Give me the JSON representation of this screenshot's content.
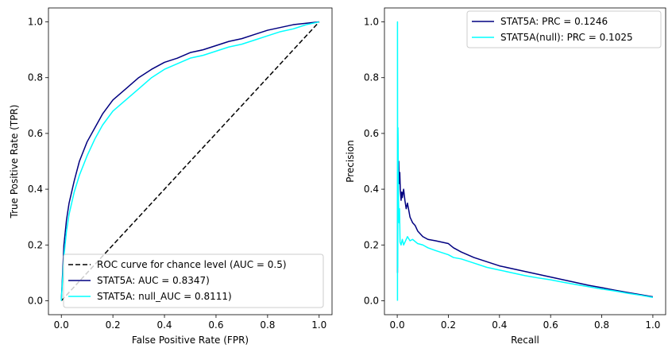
{
  "chart_data": [
    {
      "type": "line",
      "xlabel": "False Positive Rate (FPR)",
      "ylabel": "True Positive Rate (TPR)",
      "xlim": [
        -0.05,
        1.05
      ],
      "ylim": [
        -0.05,
        1.05
      ],
      "xticks": [
        0.0,
        0.2,
        0.4,
        0.6,
        0.8,
        1.0
      ],
      "yticks": [
        0.0,
        0.2,
        0.4,
        0.6,
        0.8,
        1.0
      ],
      "tick_labels": [
        "0.0",
        "0.2",
        "0.4",
        "0.6",
        "0.8",
        "1.0"
      ],
      "grid": false,
      "legend_position": "lower-right",
      "series": [
        {
          "name": "ROC curve for chance level (AUC = 0.5)",
          "color": "#000000",
          "dashed": true,
          "points": [
            [
              0,
              0
            ],
            [
              1,
              1
            ]
          ]
        },
        {
          "name": "STAT5A: AUC = 0.8347)",
          "color": "#000080",
          "dashed": false,
          "points": [
            [
              0,
              0
            ],
            [
              0.005,
              0.1
            ],
            [
              0.01,
              0.2
            ],
            [
              0.02,
              0.29
            ],
            [
              0.03,
              0.35
            ],
            [
              0.05,
              0.43
            ],
            [
              0.07,
              0.5
            ],
            [
              0.1,
              0.57
            ],
            [
              0.13,
              0.62
            ],
            [
              0.16,
              0.67
            ],
            [
              0.2,
              0.72
            ],
            [
              0.25,
              0.76
            ],
            [
              0.3,
              0.8
            ],
            [
              0.35,
              0.83
            ],
            [
              0.4,
              0.855
            ],
            [
              0.45,
              0.87
            ],
            [
              0.5,
              0.89
            ],
            [
              0.55,
              0.9
            ],
            [
              0.6,
              0.915
            ],
            [
              0.65,
              0.93
            ],
            [
              0.7,
              0.94
            ],
            [
              0.75,
              0.955
            ],
            [
              0.8,
              0.97
            ],
            [
              0.85,
              0.98
            ],
            [
              0.9,
              0.99
            ],
            [
              0.95,
              0.995
            ],
            [
              1,
              1
            ]
          ]
        },
        {
          "name": "STAT5A: null_AUC = 0.8111)",
          "color": "#00FFFF",
          "dashed": false,
          "points": [
            [
              0,
              0
            ],
            [
              0.005,
              0.08
            ],
            [
              0.01,
              0.16
            ],
            [
              0.02,
              0.25
            ],
            [
              0.03,
              0.31
            ],
            [
              0.05,
              0.39
            ],
            [
              0.07,
              0.45
            ],
            [
              0.1,
              0.52
            ],
            [
              0.13,
              0.58
            ],
            [
              0.16,
              0.63
            ],
            [
              0.2,
              0.68
            ],
            [
              0.25,
              0.72
            ],
            [
              0.3,
              0.76
            ],
            [
              0.35,
              0.8
            ],
            [
              0.4,
              0.83
            ],
            [
              0.45,
              0.85
            ],
            [
              0.5,
              0.87
            ],
            [
              0.55,
              0.88
            ],
            [
              0.6,
              0.895
            ],
            [
              0.65,
              0.91
            ],
            [
              0.7,
              0.92
            ],
            [
              0.75,
              0.935
            ],
            [
              0.8,
              0.95
            ],
            [
              0.85,
              0.965
            ],
            [
              0.9,
              0.975
            ],
            [
              0.95,
              0.99
            ],
            [
              1,
              1
            ]
          ]
        }
      ]
    },
    {
      "type": "line",
      "xlabel": "Recall",
      "ylabel": "Precision",
      "xlim": [
        -0.05,
        1.05
      ],
      "ylim": [
        -0.05,
        1.05
      ],
      "xticks": [
        0.0,
        0.2,
        0.4,
        0.6,
        0.8,
        1.0
      ],
      "yticks": [
        0.0,
        0.2,
        0.4,
        0.6,
        0.8,
        1.0
      ],
      "tick_labels": [
        "0.0",
        "0.2",
        "0.4",
        "0.6",
        "0.8",
        "1.0"
      ],
      "grid": false,
      "legend_position": "upper-right",
      "series": [
        {
          "name": "STAT5A: PRC = 0.1246",
          "color": "#000080",
          "dashed": false,
          "points": [
            [
              0.001,
              0.1
            ],
            [
              0.002,
              0.61
            ],
            [
              0.004,
              0.45
            ],
            [
              0.006,
              0.5
            ],
            [
              0.008,
              0.42
            ],
            [
              0.01,
              0.46
            ],
            [
              0.012,
              0.4
            ],
            [
              0.015,
              0.36
            ],
            [
              0.018,
              0.39
            ],
            [
              0.02,
              0.37
            ],
            [
              0.025,
              0.4
            ],
            [
              0.03,
              0.36
            ],
            [
              0.035,
              0.33
            ],
            [
              0.04,
              0.35
            ],
            [
              0.05,
              0.3
            ],
            [
              0.06,
              0.28
            ],
            [
              0.07,
              0.27
            ],
            [
              0.08,
              0.25
            ],
            [
              0.1,
              0.23
            ],
            [
              0.12,
              0.22
            ],
            [
              0.15,
              0.215
            ],
            [
              0.2,
              0.205
            ],
            [
              0.22,
              0.19
            ],
            [
              0.25,
              0.175
            ],
            [
              0.3,
              0.155
            ],
            [
              0.35,
              0.14
            ],
            [
              0.4,
              0.125
            ],
            [
              0.45,
              0.115
            ],
            [
              0.5,
              0.105
            ],
            [
              0.55,
              0.095
            ],
            [
              0.6,
              0.085
            ],
            [
              0.65,
              0.075
            ],
            [
              0.7,
              0.065
            ],
            [
              0.75,
              0.055
            ],
            [
              0.8,
              0.047
            ],
            [
              0.85,
              0.038
            ],
            [
              0.9,
              0.03
            ],
            [
              0.95,
              0.022
            ],
            [
              1.0,
              0.014
            ]
          ]
        },
        {
          "name": "STAT5A(null): PRC = 0.1025",
          "color": "#00FFFF",
          "dashed": false,
          "points": [
            [
              0.001,
              0.0
            ],
            [
              0.001,
              1.0
            ],
            [
              0.002,
              0.12
            ],
            [
              0.003,
              0.62
            ],
            [
              0.005,
              0.36
            ],
            [
              0.007,
              0.28
            ],
            [
              0.009,
              0.33
            ],
            [
              0.011,
              0.21
            ],
            [
              0.015,
              0.2
            ],
            [
              0.02,
              0.22
            ],
            [
              0.025,
              0.2
            ],
            [
              0.03,
              0.21
            ],
            [
              0.04,
              0.23
            ],
            [
              0.05,
              0.215
            ],
            [
              0.06,
              0.22
            ],
            [
              0.08,
              0.205
            ],
            [
              0.1,
              0.2
            ],
            [
              0.12,
              0.19
            ],
            [
              0.15,
              0.18
            ],
            [
              0.2,
              0.165
            ],
            [
              0.22,
              0.155
            ],
            [
              0.25,
              0.15
            ],
            [
              0.3,
              0.135
            ],
            [
              0.35,
              0.12
            ],
            [
              0.4,
              0.11
            ],
            [
              0.45,
              0.1
            ],
            [
              0.5,
              0.09
            ],
            [
              0.55,
              0.082
            ],
            [
              0.6,
              0.075
            ],
            [
              0.65,
              0.066
            ],
            [
              0.7,
              0.058
            ],
            [
              0.75,
              0.05
            ],
            [
              0.8,
              0.042
            ],
            [
              0.85,
              0.035
            ],
            [
              0.9,
              0.027
            ],
            [
              0.95,
              0.02
            ],
            [
              1.0,
              0.012
            ]
          ]
        }
      ]
    }
  ]
}
